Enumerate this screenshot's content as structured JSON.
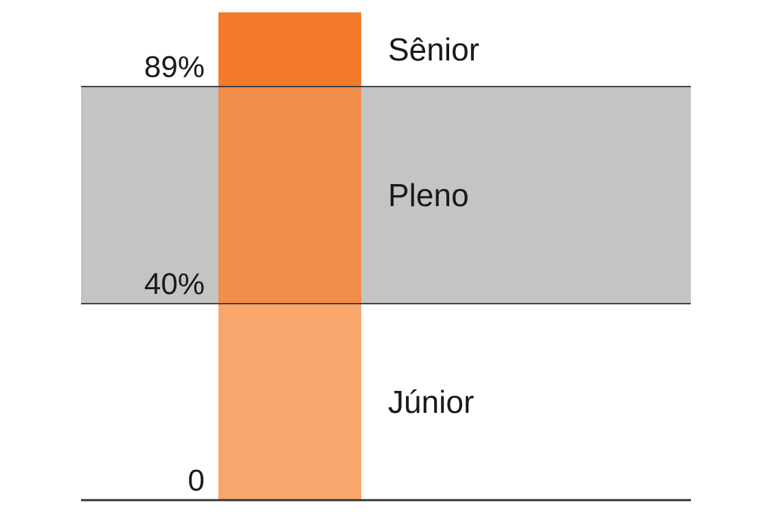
{
  "chart_data": {
    "type": "bar",
    "orientation": "vertical",
    "description_scale": "percentile",
    "ylim": [
      0,
      100
    ],
    "tick_labels": [
      "0",
      "40%",
      "89%"
    ],
    "ticks": [
      0,
      40,
      89
    ],
    "bands": [
      {
        "label": "Júnior",
        "from": 0,
        "to": 40,
        "bar_color": "#F8A66B",
        "band_color": null
      },
      {
        "label": "Pleno",
        "from": 40,
        "to": 89,
        "bar_color": "#F08D49",
        "band_color": "#C4C4C4"
      },
      {
        "label": "Sênior",
        "from": 89,
        "to": 100,
        "bar_color": "#F37B2A",
        "band_color": null
      }
    ],
    "grid": false,
    "legend": "none"
  },
  "colors": {
    "divider_line": "#404040",
    "baseline": "#333333",
    "text": "#1a1a1a"
  }
}
